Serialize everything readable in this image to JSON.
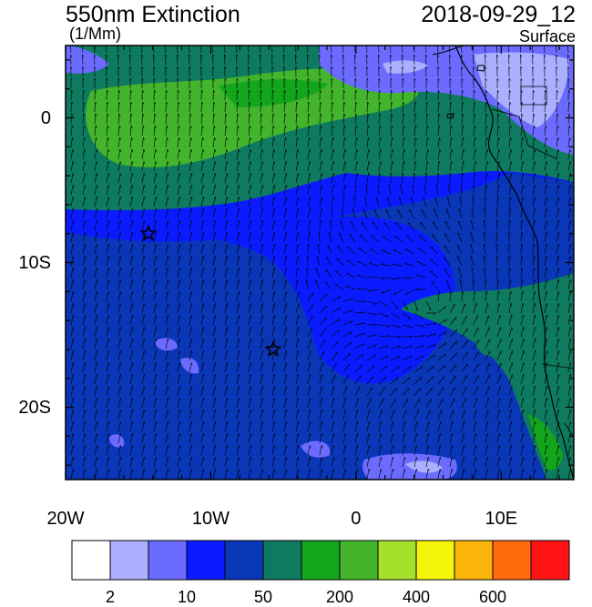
{
  "header": {
    "title": "550nm Extinction",
    "units": "(1/Mm)",
    "datetime": "2018-09-29_12",
    "level": "Surface"
  },
  "map": {
    "lon_range": [
      -20,
      15
    ],
    "lat_range": [
      -25,
      5
    ],
    "lat_ticks": [
      {
        "value": 0,
        "label": "0"
      },
      {
        "value": -10,
        "label": "10S"
      },
      {
        "value": -20,
        "label": "20S"
      }
    ],
    "lon_ticks": [
      {
        "value": -20,
        "label": "20W"
      },
      {
        "value": -10,
        "label": "10W"
      },
      {
        "value": 0,
        "label": "0"
      },
      {
        "value": 10,
        "label": "10E"
      }
    ],
    "stars": [
      {
        "lon": -14.3,
        "lat": -8.0
      },
      {
        "lon": -5.7,
        "lat": -16.0
      }
    ],
    "regions": {
      "ocean_base": "#0a1cff",
      "south_band": "#0a36b8",
      "north_band": "#0e7a5f",
      "bright_green": "#43b42c",
      "light_blue": "#6b6bff",
      "lavender": "#aab0ff",
      "coast_green": "#13a51c"
    }
  },
  "colorbar": {
    "colors": [
      "#ffffff",
      "#aab0ff",
      "#6b6bff",
      "#0a1cff",
      "#0a36b8",
      "#0e7a5f",
      "#13a51c",
      "#43b42c",
      "#a5e02b",
      "#f5f50a",
      "#fbb40a",
      "#ff6a0a",
      "#ff1212"
    ],
    "labels": [
      {
        "after_box": 1,
        "text": "2"
      },
      {
        "after_box": 3,
        "text": "10"
      },
      {
        "after_box": 5,
        "text": "50"
      },
      {
        "after_box": 7,
        "text": "200"
      },
      {
        "after_box": 9,
        "text": "400"
      },
      {
        "after_box": 11,
        "text": "600"
      }
    ]
  }
}
